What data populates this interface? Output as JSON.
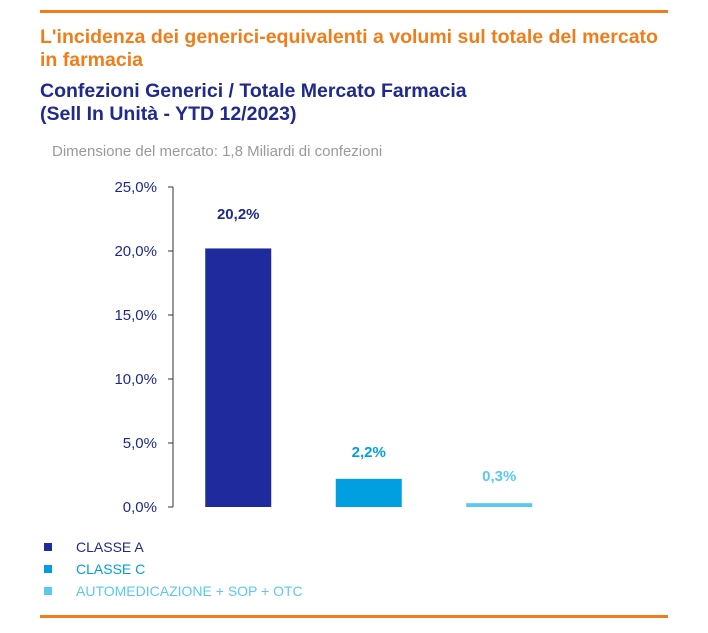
{
  "title": "L'incidenza dei generici-equivalenti a volumi sul totale del mercato in farmacia",
  "subtitle_line1": "Confezioni Generici / Totale Mercato Farmacia",
  "subtitle_line2": "(Sell In Unità - YTD 12/2023)",
  "note": "Dimensione del mercato: 1,8 Miliardi di confezioni",
  "colors": {
    "accent": "#f07d1a",
    "heading": "#1f2a8c",
    "classe_a": "#1f2a9c",
    "classe_c": "#00a0e0",
    "automedicazione": "#5bc8f0"
  },
  "chart_data": {
    "type": "bar",
    "categories": [
      "CLASSE A",
      "CLASSE C",
      "AUTOMEDICAZIONE + SOP + OTC"
    ],
    "values": [
      20.2,
      2.2,
      0.3
    ],
    "data_labels": [
      "20,2%",
      "2,2%",
      "0,3%"
    ],
    "ylim": [
      0,
      25
    ],
    "yticks": [
      0,
      5,
      10,
      15,
      20,
      25
    ],
    "ytick_labels": [
      "0,0%",
      "5,0%",
      "10,0%",
      "15,0%",
      "20,0%",
      "25,0%"
    ],
    "grid": false,
    "legend_position": "bottom-left",
    "legend": [
      {
        "label": "CLASSE A",
        "color": "#1f2a9c",
        "text_color": "#1f2a8c"
      },
      {
        "label": "CLASSE C",
        "color": "#00a0e0",
        "text_color": "#00a0e0"
      },
      {
        "label": "AUTOMEDICAZIONE + SOP + OTC",
        "color": "#5bc8f0",
        "text_color": "#5bc8f0"
      }
    ]
  }
}
